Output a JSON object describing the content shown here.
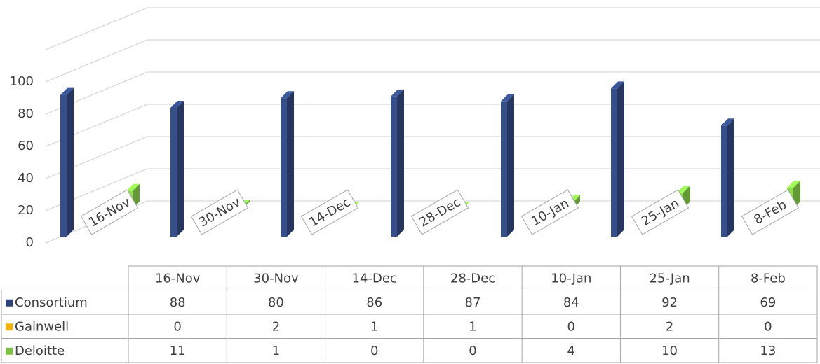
{
  "chart_data": {
    "type": "bar3d",
    "categories": [
      "16-Nov",
      "30-Nov",
      "14-Dec",
      "28-Dec",
      "10-Jan",
      "25-Jan",
      "8-Feb"
    ],
    "series": [
      {
        "name": "Consortium",
        "color": "#2f4478",
        "values": [
          88,
          80,
          86,
          87,
          84,
          92,
          69
        ]
      },
      {
        "name": "Gainwell",
        "color": "#f2b400",
        "values": [
          0,
          2,
          1,
          1,
          0,
          2,
          0
        ]
      },
      {
        "name": "Deloitte",
        "color": "#7cc142",
        "values": [
          11,
          1,
          0,
          0,
          4,
          10,
          13
        ]
      }
    ],
    "ylim": [
      0,
      120
    ],
    "yticks": [
      0,
      20,
      40,
      60,
      80,
      100
    ],
    "grid": true,
    "data_table": true
  }
}
